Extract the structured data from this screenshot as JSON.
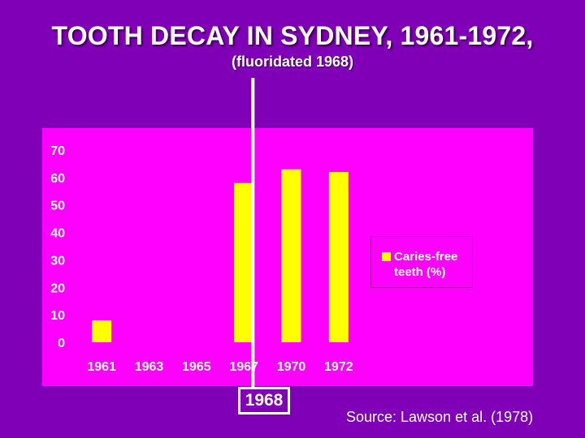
{
  "chart_data": {
    "type": "bar",
    "title": "TOOTH DECAY IN SYDNEY, 1961-1972,",
    "subtitle": "(fluoridated 1968)",
    "categories": [
      "1961",
      "1963",
      "1965",
      "1967",
      "1970",
      "1972"
    ],
    "series": [
      {
        "name": "Caries-free teeth (%)",
        "values": [
          8,
          null,
          null,
          58,
          63,
          62
        ],
        "color": "#ffff00"
      }
    ],
    "ylim": [
      0,
      70
    ],
    "yticks": [
      0,
      10,
      20,
      30,
      40,
      50,
      60,
      70
    ],
    "grid": false,
    "legend": "right",
    "marker_label": "1968",
    "marker_position_between": [
      "1967",
      "1970"
    ],
    "source": "Source: Lawson et al. (1978)"
  },
  "colors": {
    "background": "#8000b8",
    "plot_background": "#ff00ff",
    "bar": "#ffff00",
    "marker_line": "#ffffff"
  }
}
